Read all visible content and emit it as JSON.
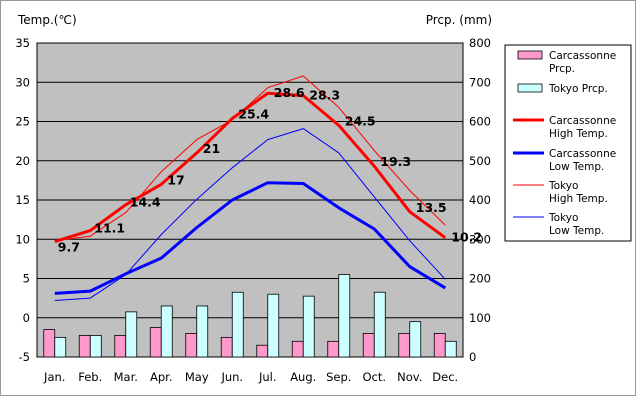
{
  "chart_data": {
    "type": "bar",
    "categories": [
      "Jan.",
      "Feb.",
      "Mar.",
      "Apr.",
      "May",
      "Jun.",
      "Jul.",
      "Aug.",
      "Sep.",
      "Oct.",
      "Nov.",
      "Dec."
    ],
    "y_left": {
      "label": "Temp.(℃)",
      "min": -5,
      "max": 35,
      "step": 5
    },
    "y_right": {
      "label": "Prcp. (mm)",
      "min": 0,
      "max": 800,
      "step": 100
    },
    "grid": true,
    "legend_position": "right",
    "bar_series": [
      {
        "name": "Carcassonne Prcp.",
        "color": "#ff99cc",
        "values": [
          70,
          55,
          55,
          75,
          60,
          50,
          30,
          40,
          40,
          60,
          60,
          60
        ]
      },
      {
        "name": "Tokyo Prcp.",
        "color": "#ccffff",
        "values": [
          50,
          55,
          115,
          130,
          130,
          165,
          160,
          155,
          210,
          165,
          90,
          40
        ]
      }
    ],
    "line_series": [
      {
        "name": "Carcassonne High Temp.",
        "color": "#ff0000",
        "width": 3,
        "values": [
          9.7,
          11.1,
          14.4,
          17,
          21,
          25.4,
          28.6,
          28.3,
          24.5,
          19.3,
          13.5,
          10.2
        ],
        "labels": [
          "9.7",
          "11.1",
          "14.4",
          "17",
          "21",
          "25.4",
          "28.6",
          "28.3",
          "24.5",
          "19.3",
          "13.5",
          "10.2"
        ]
      },
      {
        "name": "Carcassonne Low Temp.",
        "color": "#0000ff",
        "width": 3,
        "values": [
          3.1,
          3.4,
          5.6,
          7.6,
          11.5,
          15,
          17.2,
          17.1,
          14,
          11.3,
          6.5,
          3.8
        ]
      },
      {
        "name": "Tokyo High Temp.",
        "color": "#ff0000",
        "width": 1,
        "values": [
          9.8,
          10.4,
          13.4,
          18.6,
          22.7,
          25.2,
          29.3,
          30.8,
          26.8,
          21.3,
          16.2,
          11.8
        ]
      },
      {
        "name": "Tokyo Low Temp.",
        "color": "#0000ff",
        "width": 1,
        "values": [
          2.2,
          2.5,
          5.5,
          10.6,
          15.1,
          19.1,
          22.7,
          24.1,
          21,
          15.4,
          9.8,
          4.9
        ]
      }
    ]
  }
}
